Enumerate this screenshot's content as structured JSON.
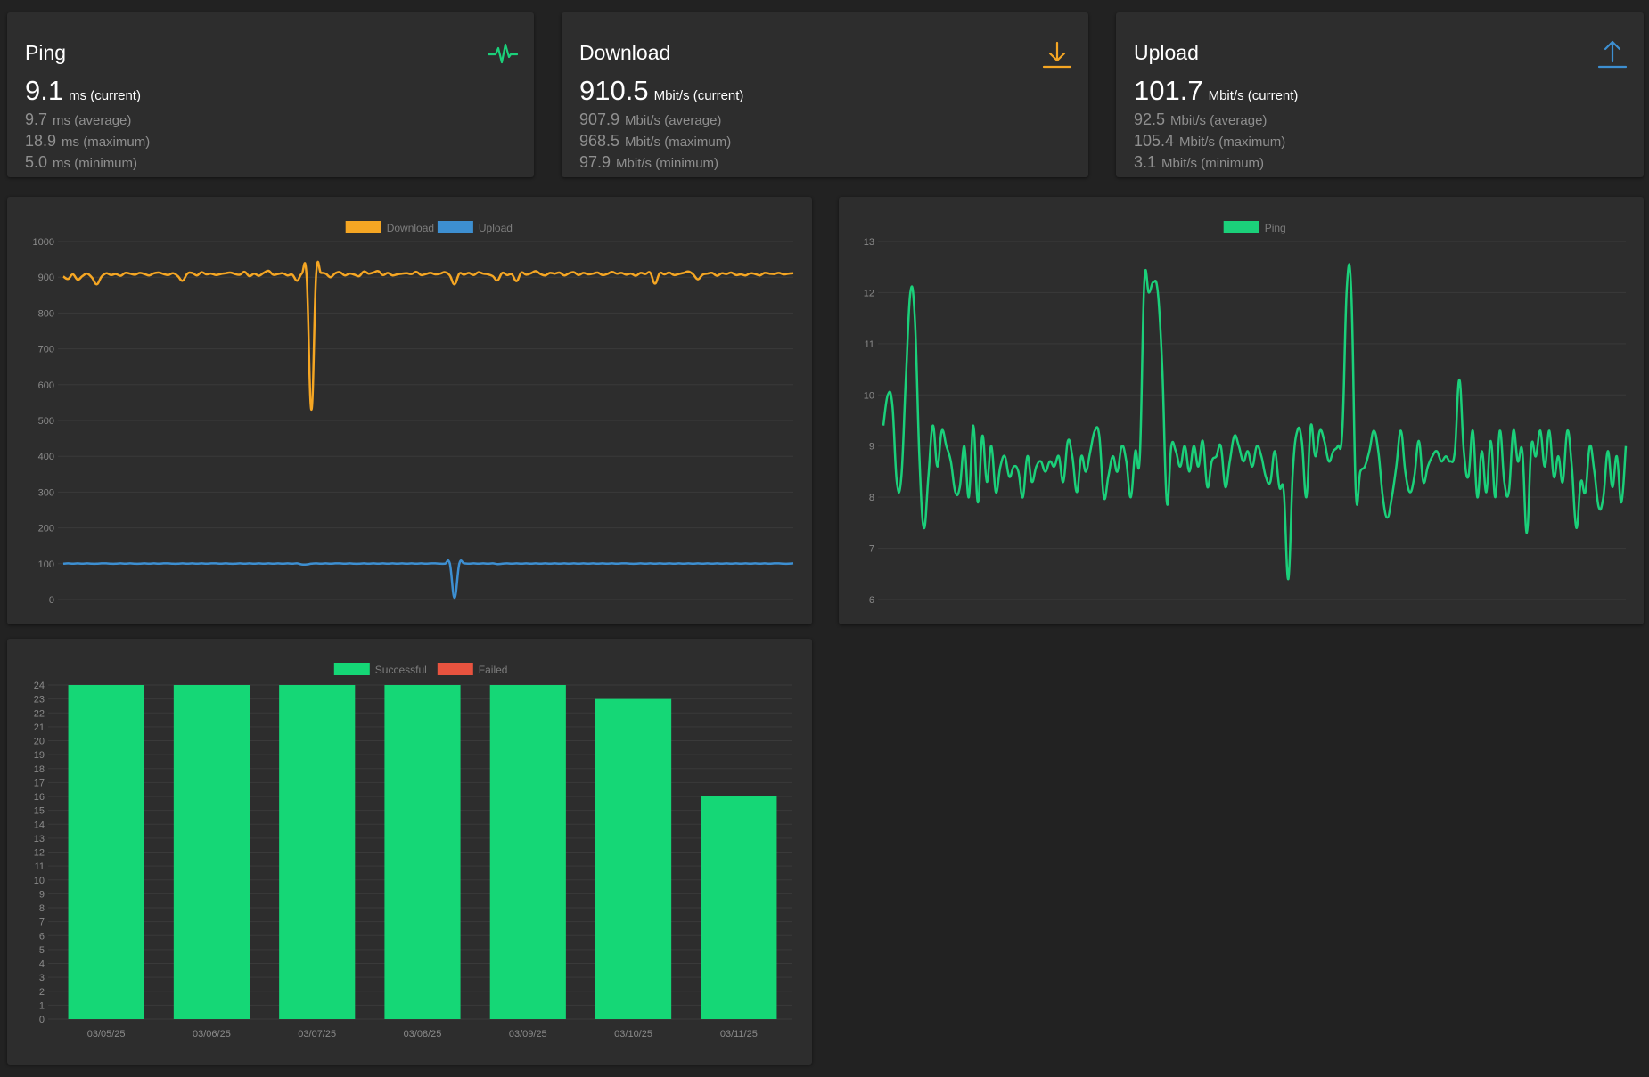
{
  "stats": {
    "ping": {
      "title": "Ping",
      "icon": "heartbeat-icon",
      "color": "#1bd07a",
      "current": "9.1",
      "current_unit": "ms (current)",
      "average": "9.7",
      "average_unit": "ms (average)",
      "maximum": "18.9",
      "maximum_unit": "ms (maximum)",
      "minimum": "5.0",
      "minimum_unit": "ms (minimum)"
    },
    "download": {
      "title": "Download",
      "icon": "download-arrow-icon",
      "color": "#f5a623",
      "current": "910.5",
      "current_unit": "Mbit/s (current)",
      "average": "907.9",
      "average_unit": "Mbit/s (average)",
      "maximum": "968.5",
      "maximum_unit": "Mbit/s (maximum)",
      "minimum": "97.9",
      "minimum_unit": "Mbit/s (minimum)"
    },
    "upload": {
      "title": "Upload",
      "icon": "upload-arrow-icon",
      "color": "#3d8fd1",
      "current": "101.7",
      "current_unit": "Mbit/s (current)",
      "average": "92.5",
      "average_unit": "Mbit/s (average)",
      "maximum": "105.4",
      "maximum_unit": "Mbit/s (maximum)",
      "minimum": "3.1",
      "minimum_unit": "Mbit/s (minimum)"
    }
  },
  "chart_data": [
    {
      "id": "speed",
      "type": "line",
      "legend_position": "top-center",
      "ylim": [
        0,
        1000
      ],
      "yticks": [
        0,
        100,
        200,
        300,
        400,
        500,
        600,
        700,
        800,
        900,
        1000
      ],
      "grid": true,
      "series": [
        {
          "name": "Download",
          "color": "#f5a623",
          "values": [
            902,
            895,
            908,
            893,
            903,
            910,
            899,
            880,
            901,
            911,
            906,
            909,
            904,
            912,
            910,
            907,
            912,
            909,
            905,
            911,
            913,
            909,
            906,
            911,
            903,
            890,
            910,
            912,
            905,
            914,
            908,
            910,
            906,
            909,
            911,
            913,
            909,
            907,
            915,
            903,
            910,
            904,
            912,
            918,
            907,
            909,
            911,
            905,
            907,
            890,
            910,
            903,
            530,
            908,
            912,
            910,
            900,
            911,
            914,
            905,
            910,
            907,
            903,
            916,
            910,
            913,
            917,
            906,
            912,
            905,
            908,
            910,
            911,
            909,
            915,
            906,
            909,
            912,
            908,
            910,
            914,
            905,
            880,
            910,
            907,
            912,
            906,
            914,
            910,
            908,
            903,
            891,
            912,
            906,
            908,
            889,
            913,
            907,
            911,
            917,
            909,
            905,
            912,
            910,
            913,
            905,
            911,
            914,
            906,
            912,
            908,
            910,
            913,
            906,
            909,
            915,
            910,
            912,
            907,
            910,
            904,
            912,
            909,
            913,
            882,
            911,
            908,
            913,
            906,
            909,
            912,
            916,
            908,
            894,
            907,
            910,
            912,
            904,
            911,
            909,
            913,
            906,
            908,
            905,
            911,
            909,
            905,
            912,
            910,
            909,
            912,
            908,
            910,
            911
          ]
        },
        {
          "name": "Upload",
          "color": "#3d8fd1",
          "values": [
            100,
            101,
            100,
            101,
            100,
            101,
            100,
            100,
            101,
            101,
            100,
            100,
            101,
            100,
            101,
            100,
            100,
            101,
            100,
            101,
            100,
            101,
            101,
            100,
            100,
            101,
            100,
            101,
            100,
            101,
            100,
            101,
            101,
            100,
            101,
            100,
            100,
            101,
            100,
            101,
            100,
            101,
            100,
            101,
            100,
            101,
            100,
            101,
            100,
            101,
            98,
            98,
            100,
            101,
            100,
            101,
            100,
            101,
            101,
            100,
            101,
            100,
            100,
            101,
            100,
            101,
            100,
            101,
            100,
            101,
            100,
            101,
            100,
            101,
            100,
            101,
            100,
            101,
            101,
            100,
            100,
            101,
            5,
            100,
            101,
            100,
            101,
            100,
            101,
            100,
            101,
            99,
            100,
            101,
            100,
            101,
            100,
            101,
            100,
            101,
            100,
            101,
            100,
            101,
            100,
            101,
            100,
            101,
            100,
            101,
            100,
            101,
            100,
            101,
            100,
            101,
            100,
            101,
            101,
            100,
            100,
            101,
            100,
            101,
            100,
            101,
            100,
            101,
            100,
            101,
            100,
            101,
            100,
            101,
            100,
            101,
            100,
            101,
            100,
            101,
            100,
            101,
            100,
            101,
            100,
            101,
            100,
            101,
            100,
            101,
            101,
            100,
            100,
            101
          ]
        }
      ]
    },
    {
      "id": "ping",
      "type": "line",
      "legend_position": "top-center",
      "ylim": [
        6,
        13
      ],
      "yticks": [
        6,
        7,
        8,
        9,
        10,
        11,
        12,
        13
      ],
      "grid": true,
      "series": [
        {
          "name": "Ping",
          "color": "#1bd07a",
          "values": [
            9.4,
            10.0,
            9.8,
            8.3,
            8.4,
            10.3,
            12.0,
            11.5,
            8.8,
            7.4,
            8.4,
            9.4,
            8.6,
            9.3,
            9.0,
            8.7,
            8.1,
            8.2,
            9.0,
            8.0,
            9.4,
            7.9,
            9.2,
            8.3,
            9.0,
            8.1,
            8.6,
            8.8,
            8.4,
            8.6,
            8.5,
            8.0,
            8.8,
            8.3,
            8.6,
            8.7,
            8.5,
            8.7,
            8.6,
            8.8,
            8.3,
            9.1,
            8.8,
            8.1,
            8.8,
            8.5,
            8.9,
            9.3,
            9.2,
            8.0,
            8.4,
            8.8,
            8.5,
            9.0,
            8.7,
            8.0,
            8.9,
            8.8,
            12.2,
            12.0,
            12.2,
            12.0,
            10.5,
            7.9,
            9.0,
            8.9,
            8.6,
            9.0,
            8.5,
            9.0,
            8.6,
            9.1,
            8.2,
            8.7,
            8.8,
            9.0,
            8.2,
            8.7,
            9.2,
            9.0,
            8.7,
            8.9,
            8.6,
            9.0,
            8.8,
            8.4,
            8.3,
            8.9,
            8.2,
            8.1,
            6.4,
            8.5,
            9.3,
            9.1,
            8.0,
            9.4,
            8.8,
            9.3,
            9.1,
            8.7,
            8.9,
            9.0,
            9.3,
            12.1,
            12.0,
            8.1,
            8.5,
            8.6,
            8.9,
            9.3,
            8.9,
            8.0,
            7.6,
            8.0,
            8.6,
            9.3,
            8.5,
            8.1,
            8.4,
            9.1,
            8.3,
            8.6,
            8.8,
            8.9,
            8.7,
            8.8,
            8.7,
            8.9,
            10.3,
            8.9,
            8.4,
            9.3,
            8.0,
            8.9,
            8.1,
            9.1,
            8.0,
            9.3,
            8.3,
            8.1,
            9.3,
            8.7,
            8.9,
            7.3,
            9.0,
            8.8,
            9.3,
            8.6,
            9.3,
            8.4,
            8.8,
            8.3,
            9.3,
            8.6,
            7.4,
            8.3,
            8.1,
            9.0,
            8.5,
            7.8,
            8.0,
            8.9,
            8.2,
            8.8,
            7.9,
            9.0
          ]
        }
      ]
    },
    {
      "id": "results",
      "type": "bar",
      "legend_position": "top-center",
      "ylim": [
        0,
        24
      ],
      "grid": true,
      "categories": [
        "03/05/25",
        "03/06/25",
        "03/07/25",
        "03/08/25",
        "03/09/25",
        "03/10/25",
        "03/11/25"
      ],
      "series": [
        {
          "name": "Successful",
          "color": "#15d776",
          "values": [
            24,
            24,
            24,
            24,
            24,
            23,
            16
          ]
        },
        {
          "name": "Failed",
          "color": "#e8533f",
          "values": [
            0,
            0,
            0,
            0,
            0,
            0,
            0
          ]
        }
      ]
    }
  ]
}
